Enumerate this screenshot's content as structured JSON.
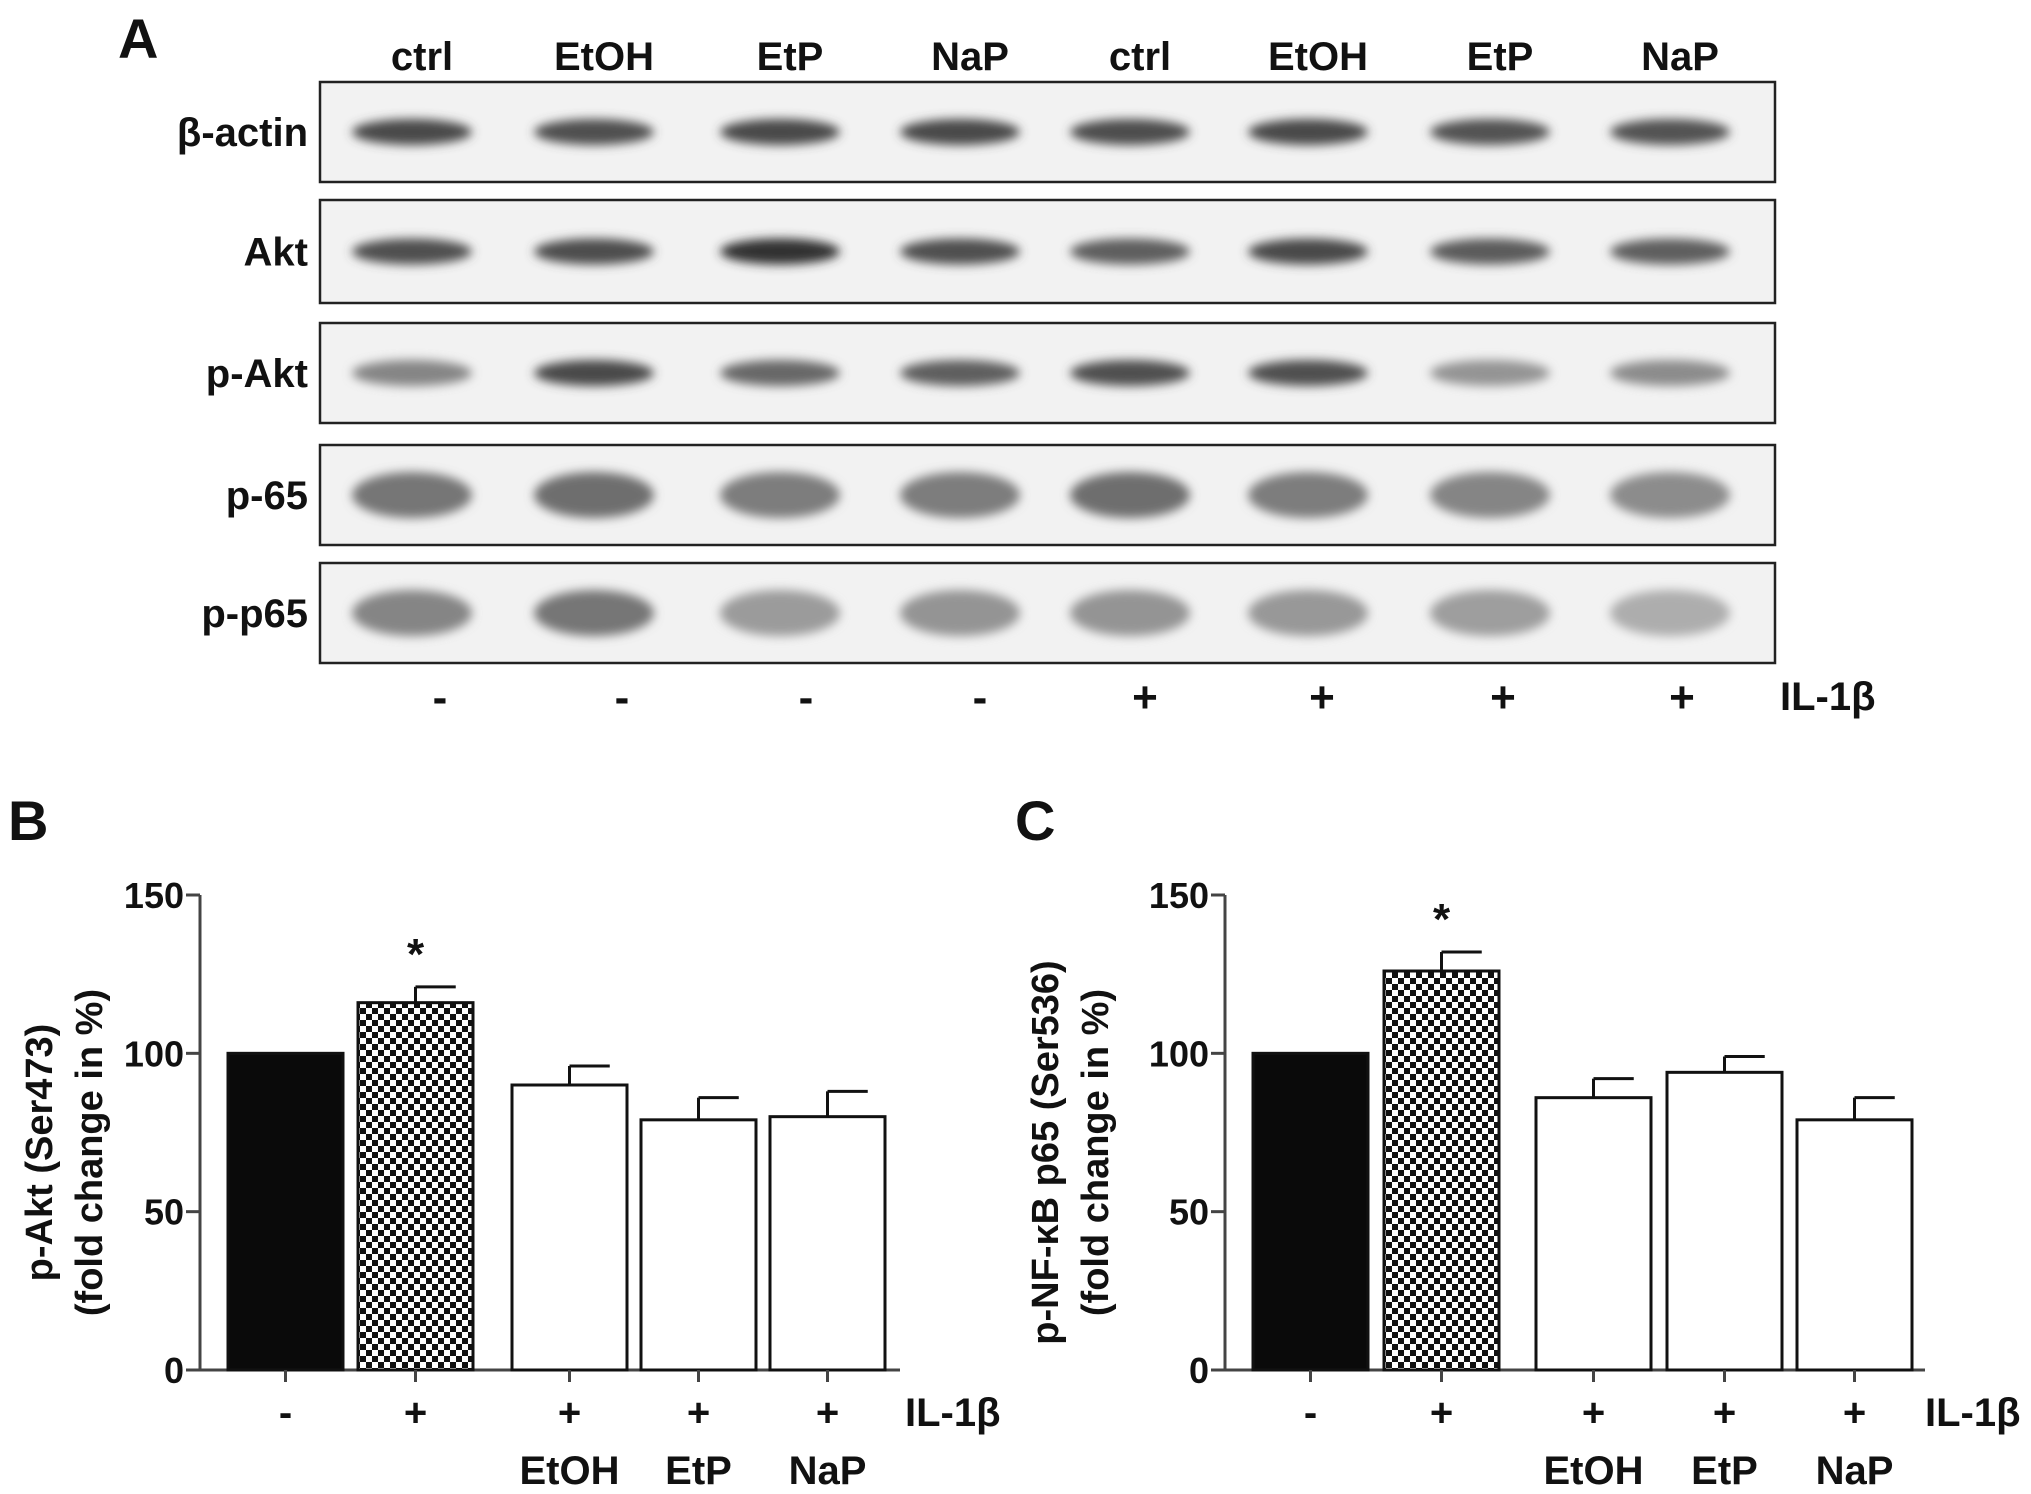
{
  "panels": {
    "A": {
      "letter": "A",
      "lanes": [
        "ctrl",
        "EtOH",
        "EtP",
        "NaP",
        "ctrl",
        "EtOH",
        "EtP",
        "NaP"
      ],
      "rows": [
        {
          "label": "β-actin",
          "intensity": [
            0.85,
            0.8,
            0.85,
            0.85,
            0.82,
            0.85,
            0.78,
            0.78
          ]
        },
        {
          "label": "Akt",
          "intensity": [
            0.8,
            0.82,
            1.0,
            0.8,
            0.7,
            0.85,
            0.72,
            0.7
          ]
        },
        {
          "label": "p-Akt",
          "intensity": [
            0.45,
            0.85,
            0.65,
            0.7,
            0.8,
            0.8,
            0.35,
            0.4
          ]
        },
        {
          "label": "p-65",
          "intensity": [
            0.55,
            0.6,
            0.5,
            0.5,
            0.6,
            0.5,
            0.45,
            0.4
          ]
        },
        {
          "label": "p-p65",
          "intensity": [
            0.45,
            0.55,
            0.3,
            0.35,
            0.35,
            0.32,
            0.28,
            0.18
          ]
        }
      ],
      "treatment": [
        "-",
        "-",
        "-",
        "-",
        "+",
        "+",
        "+",
        "+"
      ],
      "treatment_label": "IL-1β"
    },
    "B": {
      "letter": "B"
    },
    "C": {
      "letter": "C"
    }
  },
  "chart_data": [
    {
      "type": "bar",
      "panel": "B",
      "categories": [
        "-",
        "+",
        "+",
        "+",
        "+"
      ],
      "sublabels": [
        "",
        "",
        "EtOH",
        "EtP",
        "NaP"
      ],
      "treatment_label": "IL-1β",
      "values": [
        100,
        116,
        90,
        79,
        80
      ],
      "errors": [
        0,
        5,
        6,
        7,
        8
      ],
      "fills": [
        "black",
        "checker",
        "white",
        "white",
        "white"
      ],
      "significance": [
        "",
        "*",
        "",
        "",
        ""
      ],
      "ylabel_lines": [
        "p-Akt (Ser473)",
        "(fold change in %)"
      ],
      "xlabel": "",
      "ylim": [
        0,
        150
      ],
      "yticks": [
        0,
        50,
        100,
        150
      ]
    },
    {
      "type": "bar",
      "panel": "C",
      "categories": [
        "-",
        "+",
        "+",
        "+",
        "+"
      ],
      "sublabels": [
        "",
        "",
        "EtOH",
        "EtP",
        "NaP"
      ],
      "treatment_label": "IL-1β",
      "values": [
        100,
        126,
        86,
        94,
        79
      ],
      "errors": [
        0,
        6,
        6,
        5,
        7
      ],
      "fills": [
        "black",
        "checker",
        "white",
        "white",
        "white"
      ],
      "significance": [
        "",
        "*",
        "",
        "",
        ""
      ],
      "ylabel_lines": [
        "p-NF-κB p65 (Ser536)",
        "(fold change in %)"
      ],
      "xlabel": "",
      "ylim": [
        0,
        150
      ],
      "yticks": [
        0,
        50,
        100,
        150
      ]
    }
  ]
}
